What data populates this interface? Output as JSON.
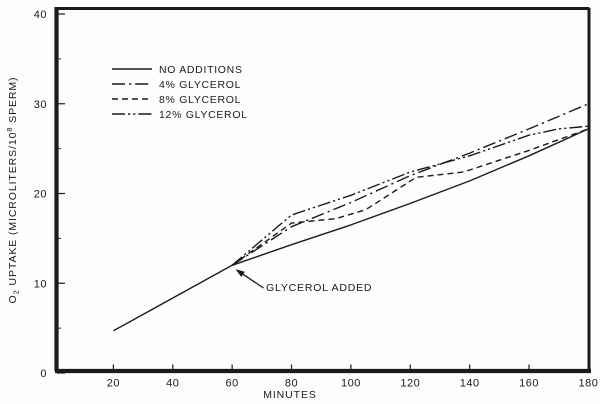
{
  "figure": {
    "background": "#fdfdfc",
    "ink_color": "#1b1b1b"
  },
  "chart_data": {
    "type": "line",
    "title": "",
    "xlabel": "MINUTES",
    "ylabel": "O2 UPTAKE (MICROLITERS/10^8 SPERM)",
    "ylabel_parts": [
      {
        "text": "O",
        "style": "normal"
      },
      {
        "text": "2",
        "style": "sub"
      },
      {
        "text": " UPTAKE (MICROLITERS/10",
        "style": "normal"
      },
      {
        "text": "8",
        "style": "sup"
      },
      {
        "text": " SPERM)",
        "style": "normal"
      }
    ],
    "xlim": [
      0,
      180
    ],
    "ylim": [
      0,
      40
    ],
    "x_ticks": [
      20,
      40,
      60,
      80,
      100,
      120,
      140,
      160,
      180
    ],
    "y_ticks": [
      0,
      10,
      20,
      30,
      40
    ],
    "y_minor_ticks": [
      5,
      15,
      25,
      35
    ],
    "grid": false,
    "legend_position": "upper-left-inside",
    "series": [
      {
        "name": "NO ADDITIONS",
        "dash": "solid",
        "points": [
          [
            20,
            4.7
          ],
          [
            60,
            12.0
          ],
          [
            80,
            14.3
          ],
          [
            100,
            16.5
          ],
          [
            120,
            18.9
          ],
          [
            140,
            21.4
          ],
          [
            160,
            24.2
          ],
          [
            180,
            27.2
          ]
        ]
      },
      {
        "name": "4% GLYCEROL",
        "dash": "dash-dot",
        "points": [
          [
            60,
            12.0
          ],
          [
            80,
            16.3
          ],
          [
            100,
            19.0
          ],
          [
            120,
            22.0
          ],
          [
            140,
            24.5
          ],
          [
            160,
            27.2
          ],
          [
            180,
            30.0
          ]
        ]
      },
      {
        "name": "8% GLYCEROL",
        "dash": "dashed",
        "points": [
          [
            60,
            12.0
          ],
          [
            80,
            16.7
          ],
          [
            95,
            17.2
          ],
          [
            105,
            18.2
          ],
          [
            122,
            21.8
          ],
          [
            138,
            22.4
          ],
          [
            160,
            24.8
          ],
          [
            180,
            27.2
          ]
        ]
      },
      {
        "name": "12% GLYCEROL",
        "dash": "dash-dot-dot",
        "points": [
          [
            60,
            12.0
          ],
          [
            80,
            17.6
          ],
          [
            100,
            19.8
          ],
          [
            120,
            22.4
          ],
          [
            140,
            24.2
          ],
          [
            160,
            26.5
          ],
          [
            170,
            27.2
          ],
          [
            180,
            27.5
          ]
        ]
      }
    ],
    "annotation": {
      "text": "GLYCEROL ADDED",
      "points_at_x": 60,
      "points_at_y": 12
    }
  }
}
